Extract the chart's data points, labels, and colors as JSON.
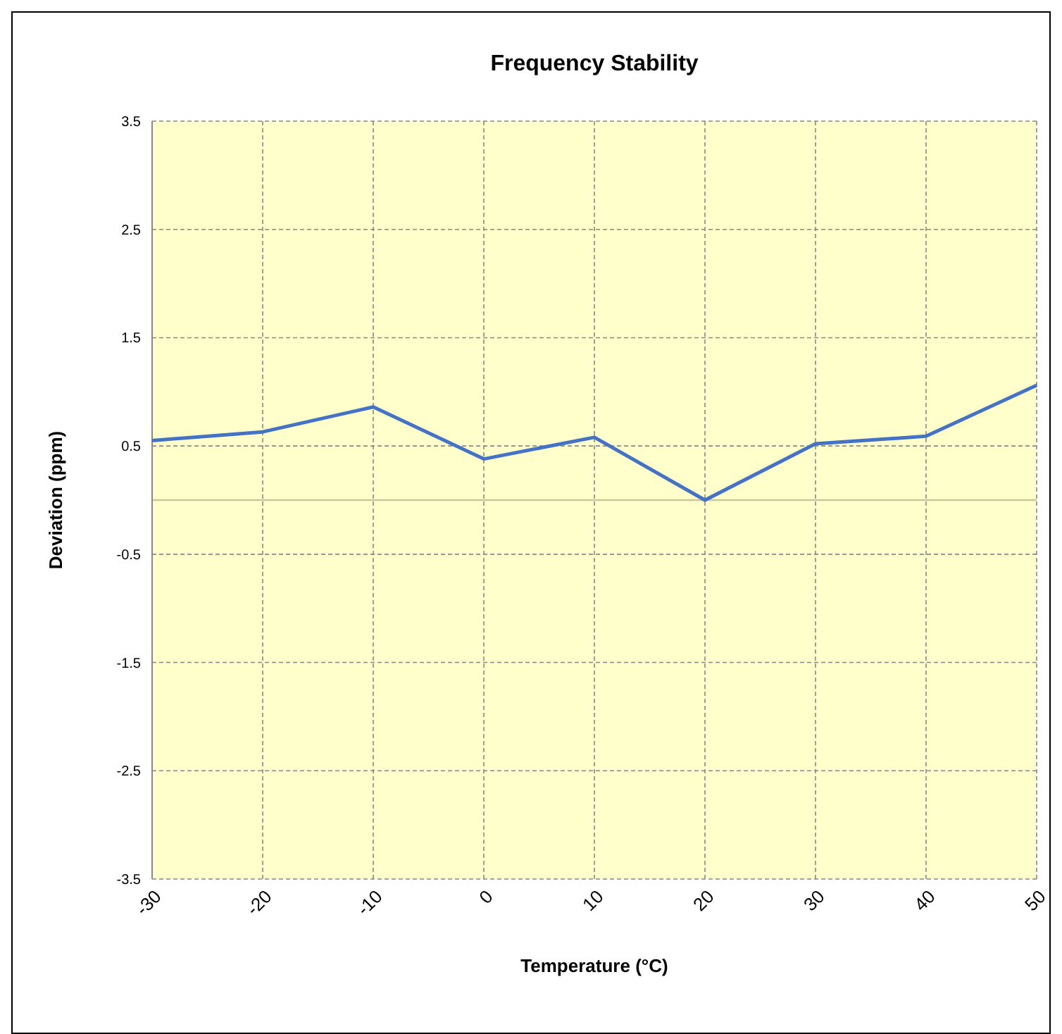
{
  "chart_data": {
    "type": "line",
    "title": "Frequency Stability",
    "xlabel": "Temperature (°C)",
    "ylabel": "Deviation (ppm)",
    "x": [
      -30,
      -20,
      -10,
      0,
      10,
      20,
      30,
      40,
      50
    ],
    "series": [
      {
        "color": "#4472c4",
        "values": [
          0.55,
          0.63,
          0.86,
          0.38,
          0.58,
          0,
          0.52,
          0.59,
          1.06
        ]
      }
    ],
    "xlim": [
      -30,
      50
    ],
    "xticks": [
      -30,
      -20,
      -10,
      0,
      10,
      20,
      30,
      40,
      50
    ],
    "ylim": [
      -3.5,
      3.5
    ],
    "yticks": [
      -3.5,
      -2.5,
      -1.5,
      -0.5,
      0.5,
      1.5,
      2.5,
      3.5
    ],
    "grid": true,
    "marker": "none",
    "line_style": "solid"
  }
}
